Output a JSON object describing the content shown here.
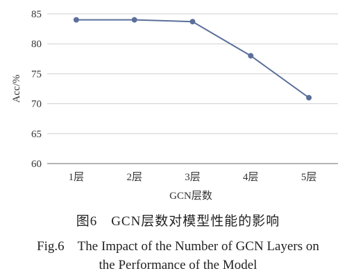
{
  "chart_data": {
    "type": "line",
    "categories": [
      "1层",
      "2层",
      "3层",
      "4层",
      "5层"
    ],
    "series": [
      {
        "values": [
          84,
          84,
          83.7,
          78,
          71
        ]
      }
    ],
    "xlabel": "GCN层数",
    "ylabel": "Acc/%",
    "ylim": [
      60,
      85
    ],
    "yticks": [
      60,
      65,
      70,
      75,
      80,
      85
    ],
    "grid": true,
    "line_color": "#5b6f9a"
  },
  "caption": {
    "cn": "图6　GCN层数对模型性能的影响",
    "en_line1": "Fig.6　The Impact of the Number of GCN Layers on",
    "en_line2": "the Performance of the Model"
  }
}
